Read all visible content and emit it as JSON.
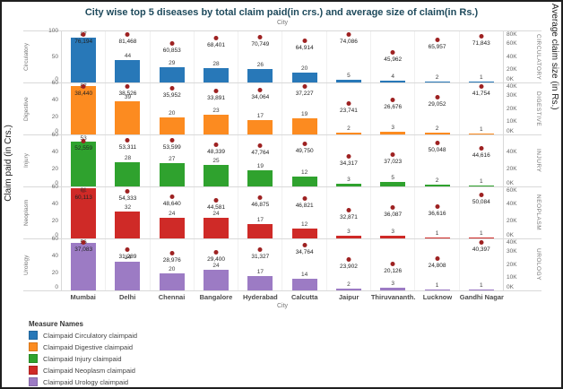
{
  "title": "City wise top 5 diseases by total claim paid(in crs.) and average size of claim(in Rs.)",
  "top_axis_label": "City",
  "bottom_axis_label": "City",
  "left_axis_label": "Claim paid (in Crs.)",
  "right_axis_label": "Average claim size (in Rs.)",
  "legend": {
    "title": "Measure Names",
    "items": [
      {
        "label": "Claimpaid Circulatory claimpaid",
        "color": "#2878b8"
      },
      {
        "label": "Claimpaid Digestive claimpaid",
        "color": "#fc8b20"
      },
      {
        "label": "Claimpaid Injury claimpaid",
        "color": "#2fa22e"
      },
      {
        "label": "Claimpaid Neoplasm claimpaid",
        "color": "#cf2a27"
      },
      {
        "label": "Claimpaid Urology claimpaid",
        "color": "#9c7bc4"
      }
    ]
  },
  "chart_data": {
    "type": "bar",
    "dot_color": "#9e2222",
    "categories": [
      "Mumbai",
      "Delhi",
      "Chennai",
      "Bangalore",
      "Hyderabad",
      "Calcutta",
      "Jaipur",
      "Thiruvananth..",
      "Lucknow",
      "Gandhi Nagar"
    ],
    "panels": [
      {
        "disease": "Circulatory",
        "right_label": "CIRCULATORY",
        "color": "#2878b8",
        "bars": [
          87,
          44,
          29,
          28,
          26,
          20,
          5,
          4,
          2,
          1
        ],
        "avg": [
          "76,194",
          "81,468",
          "60,853",
          "68,401",
          "70,749",
          "64,914",
          "74,086",
          "45,962",
          "65,957",
          "71,843"
        ],
        "left_max": 100,
        "left_ticks": [
          {
            "label": "100",
            "v": 100
          },
          {
            "label": "50",
            "v": 50
          },
          {
            "label": "0",
            "v": 0
          }
        ],
        "right_scale": 80000,
        "right_ticks": [
          {
            "label": "80K",
            "v": 80000
          },
          {
            "label": "60K",
            "v": 60000
          },
          {
            "label": "40K",
            "v": 40000
          },
          {
            "label": "20K",
            "v": 20000
          },
          {
            "label": "0K",
            "v": 0
          }
        ]
      },
      {
        "disease": "Digestive",
        "right_label": "DIGESTIVE",
        "color": "#fc8b20",
        "bars": [
          57,
          39,
          20,
          23,
          17,
          19,
          2,
          3,
          2,
          1
        ],
        "avg": [
          "38,440",
          "38,526",
          "35,952",
          "33,891",
          "34,064",
          "37,227",
          "23,741",
          "26,676",
          "29,052",
          "41,754"
        ],
        "left_max": 60,
        "left_ticks": [
          {
            "label": "60",
            "v": 60
          },
          {
            "label": "40",
            "v": 40
          },
          {
            "label": "20",
            "v": 20
          },
          {
            "label": "0",
            "v": 0
          }
        ],
        "right_scale": 40000,
        "right_ticks": [
          {
            "label": "40K",
            "v": 40000
          },
          {
            "label": "30K",
            "v": 30000
          },
          {
            "label": "20K",
            "v": 20000
          },
          {
            "label": "10K",
            "v": 10000
          },
          {
            "label": "0K",
            "v": 0
          }
        ]
      },
      {
        "disease": "Injury",
        "right_label": "INJURY",
        "color": "#2fa22e",
        "bars": [
          53,
          28,
          27,
          25,
          19,
          12,
          3,
          5,
          2,
          1
        ],
        "avg": [
          "52,559",
          "53,311",
          "53,599",
          "48,339",
          "47,764",
          "49,750",
          "34,317",
          "37,023",
          "50,048",
          "44,616"
        ],
        "left_max": 60,
        "left_ticks": [
          {
            "label": "60",
            "v": 60
          },
          {
            "label": "40",
            "v": 40
          },
          {
            "label": "20",
            "v": 20
          },
          {
            "label": "0",
            "v": 0
          }
        ],
        "right_scale": 60000,
        "right_ticks": [
          {
            "label": "40K",
            "v": 40000
          },
          {
            "label": "20K",
            "v": 20000
          },
          {
            "label": "0K",
            "v": 0
          }
        ]
      },
      {
        "disease": "Neoplasm",
        "right_label": "NEOPLASM",
        "color": "#cf2a27",
        "bars": [
          61,
          32,
          24,
          24,
          17,
          12,
          3,
          3,
          1,
          1
        ],
        "avg": [
          "60,113",
          "54,333",
          "48,640",
          "44,581",
          "46,875",
          "46,821",
          "32,871",
          "36,087",
          "36,616",
          "50,084"
        ],
        "left_max": 60,
        "left_ticks": [
          {
            "label": "60",
            "v": 60
          },
          {
            "label": "40",
            "v": 40
          },
          {
            "label": "20",
            "v": 20
          },
          {
            "label": "0",
            "v": 0
          }
        ],
        "right_scale": 60000,
        "right_ticks": [
          {
            "label": "60K",
            "v": 60000
          },
          {
            "label": "40K",
            "v": 40000
          },
          {
            "label": "20K",
            "v": 20000
          },
          {
            "label": "0K",
            "v": 0
          }
        ]
      },
      {
        "disease": "Urology",
        "right_label": "UROLOGY",
        "color": "#9c7bc4",
        "bars": [
          56,
          34,
          20,
          24,
          17,
          14,
          2,
          3,
          1,
          1
        ],
        "avg": [
          "37,083",
          "31,289",
          "28,976",
          "29,400",
          "31,327",
          "34,764",
          "23,902",
          "20,126",
          "24,808",
          "40,397"
        ],
        "left_max": 60,
        "left_ticks": [
          {
            "label": "60",
            "v": 60
          },
          {
            "label": "40",
            "v": 40
          },
          {
            "label": "20",
            "v": 20
          },
          {
            "label": "0",
            "v": 0
          }
        ],
        "right_scale": 40000,
        "right_ticks": [
          {
            "label": "40K",
            "v": 40000
          },
          {
            "label": "30K",
            "v": 30000
          },
          {
            "label": "20K",
            "v": 20000
          },
          {
            "label": "10K",
            "v": 10000
          },
          {
            "label": "0K",
            "v": 0
          }
        ]
      }
    ]
  }
}
